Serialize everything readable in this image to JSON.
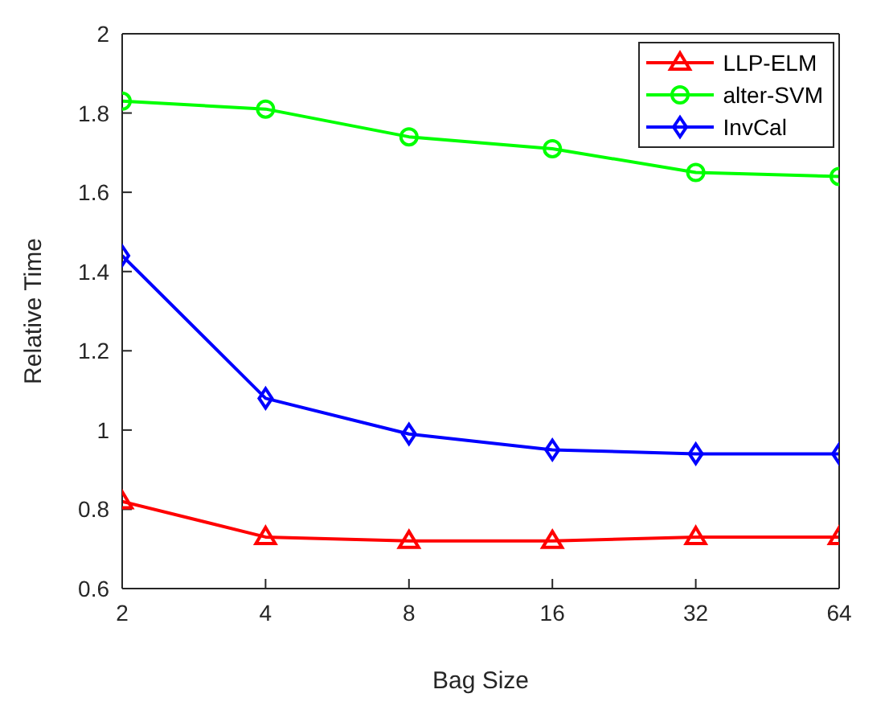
{
  "chart_data": {
    "type": "line",
    "xlabel": "Bag Size",
    "ylabel": "Relative Time",
    "categories": [
      "2",
      "4",
      "8",
      "16",
      "32",
      "64"
    ],
    "series": [
      {
        "name": "LLP-ELM",
        "color": "#ff0000",
        "marker": "triangle",
        "values": [
          0.82,
          0.73,
          0.72,
          0.72,
          0.73,
          0.73
        ]
      },
      {
        "name": "alter-SVM",
        "color": "#00ff00",
        "marker": "circle",
        "values": [
          1.83,
          1.81,
          1.74,
          1.71,
          1.65,
          1.64
        ]
      },
      {
        "name": "InvCal",
        "color": "#0000ff",
        "marker": "diamond",
        "values": [
          1.44,
          1.08,
          0.99,
          0.95,
          0.94,
          0.94
        ]
      }
    ],
    "ylim": [
      0.6,
      2
    ],
    "yticks": [
      0.6,
      0.8,
      1,
      1.2,
      1.4,
      1.6,
      1.8,
      2
    ],
    "grid": false,
    "legend": "top right",
    "line_style": "solid"
  }
}
